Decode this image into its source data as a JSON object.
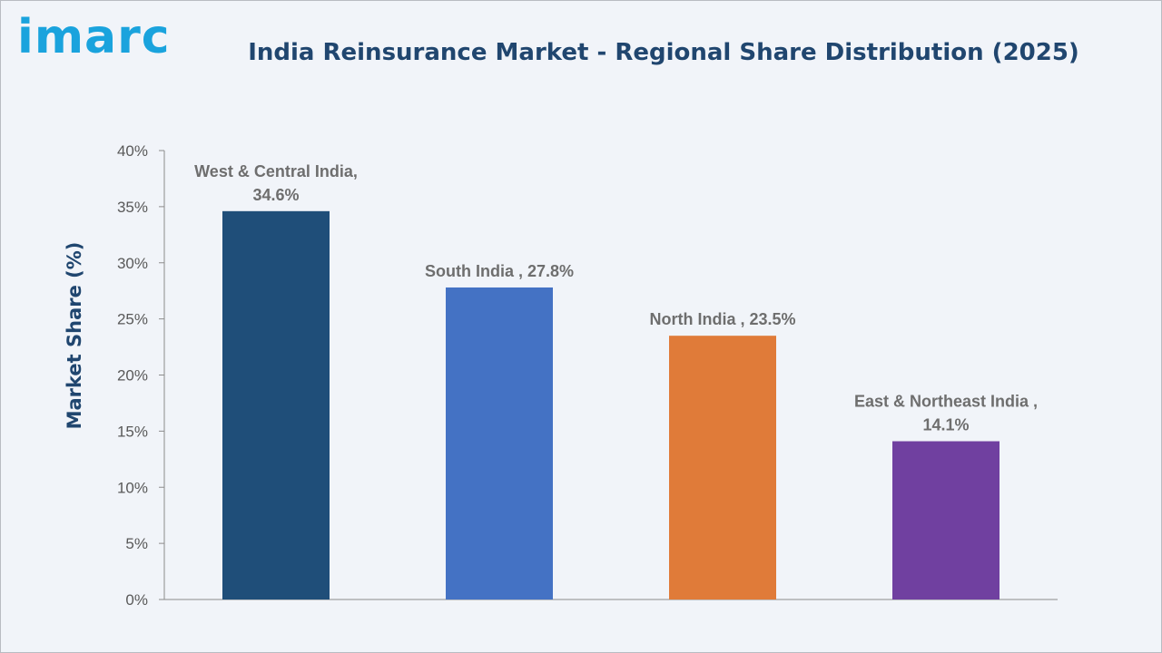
{
  "brand": {
    "logo_text": "imarc"
  },
  "chart_data": {
    "type": "bar",
    "title": "India Reinsurance Market - Regional Share Distribution (2025)",
    "ylabel": "Market Share (%)",
    "xlabel": "",
    "ylim": [
      0,
      40
    ],
    "yticks": [
      0,
      5,
      10,
      15,
      20,
      25,
      30,
      35,
      40
    ],
    "ytick_suffix": "%",
    "grid": false,
    "categories": [
      "West & Central India",
      "South India",
      "North India",
      "East & Northeast India"
    ],
    "values": [
      34.6,
      27.8,
      23.5,
      14.1
    ],
    "bar_colors": [
      "#1f4e79",
      "#4472c4",
      "#e07b39",
      "#7040a0"
    ],
    "data_labels": [
      [
        "West & Central India,",
        "34.6%"
      ],
      [
        "South India , 27.8%"
      ],
      [
        "North India , 23.5%"
      ],
      [
        "East & Northeast India ,",
        "14.1%"
      ]
    ]
  }
}
